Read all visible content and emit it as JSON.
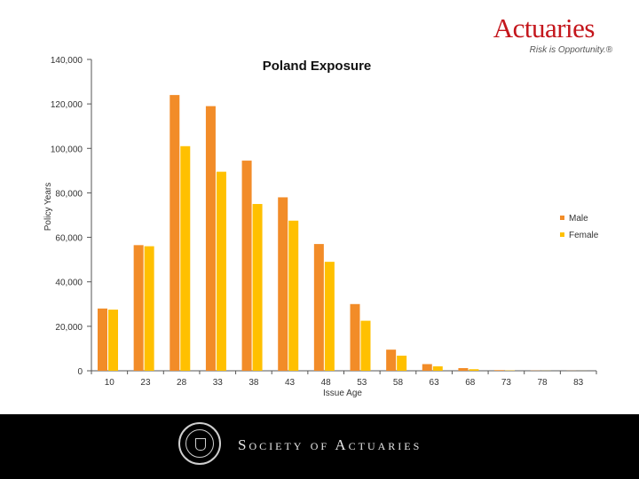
{
  "logo": {
    "word": "Actuaries",
    "tagline": "Risk is Opportunity.®"
  },
  "footer": {
    "org": "Society of Actuaries"
  },
  "chart_data": {
    "type": "bar",
    "title": "Poland Exposure",
    "xlabel": "Issue Age",
    "ylabel": "Policy Years",
    "categories": [
      "10",
      "23",
      "28",
      "33",
      "38",
      "43",
      "48",
      "53",
      "58",
      "63",
      "68",
      "73",
      "78",
      "83"
    ],
    "series": [
      {
        "name": "Male",
        "color": "#f28c28",
        "values": [
          28000,
          56500,
          124000,
          119000,
          94500,
          78000,
          57000,
          30000,
          9500,
          3000,
          1200,
          300,
          100,
          50
        ]
      },
      {
        "name": "Female",
        "color": "#ffc000",
        "values": [
          27500,
          56000,
          101000,
          89500,
          75000,
          67500,
          49000,
          22500,
          6800,
          2000,
          700,
          150,
          50,
          20
        ]
      }
    ],
    "ylim": [
      0,
      140000
    ],
    "yticks": [
      "0",
      "20,000",
      "40,000",
      "60,000",
      "80,000",
      "100,000",
      "120,000",
      "140,000"
    ],
    "grid": false,
    "legend": "right"
  }
}
